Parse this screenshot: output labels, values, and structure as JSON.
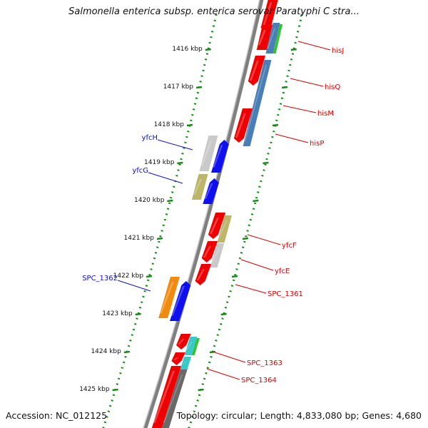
{
  "title": "Salmonella enterica subsp. enterica serovar Paratyphi C stra...",
  "accession": "Accession: NC_012125",
  "summary": "Topology: circular; Length: 4,833,080 bp; Genes: 4,680",
  "colors": {
    "backbone": "#7f7f7f",
    "tick": "#1a8a1a",
    "forward_label": "#1010cc",
    "reverse_label": "#dd0000"
  },
  "ticks": [
    {
      "label": "1416 kbp"
    },
    {
      "label": "1417 kbp"
    },
    {
      "label": "1418 kbp"
    },
    {
      "label": "1419 kbp"
    },
    {
      "label": "1420 kbp"
    },
    {
      "label": "1421 kbp"
    },
    {
      "label": "1422 kbp"
    },
    {
      "label": "1423 kbp"
    },
    {
      "label": "1424 kbp"
    },
    {
      "label": "1425 kbp"
    }
  ],
  "forward_genes": [
    {
      "name": "yfcH",
      "color": "#1010cc"
    },
    {
      "name": "yfcG",
      "color": "#1010cc"
    },
    {
      "name": "SPC_1362",
      "color": "#1010cc"
    }
  ],
  "reverse_genes": [
    {
      "name": "hisJ",
      "color": "#dd0000"
    },
    {
      "name": "hisQ",
      "color": "#dd0000"
    },
    {
      "name": "hisM",
      "color": "#dd0000"
    },
    {
      "name": "hisP",
      "color": "#dd0000"
    },
    {
      "name": "yfcF",
      "color": "#dd0000"
    },
    {
      "name": "yfcE",
      "color": "#dd0000"
    },
    {
      "name": "SPC_1361",
      "color": "#dd0000"
    },
    {
      "name": "SPC_1363",
      "color": "#dd0000"
    },
    {
      "name": "SPC_1364",
      "color": "#dd0000"
    }
  ]
}
